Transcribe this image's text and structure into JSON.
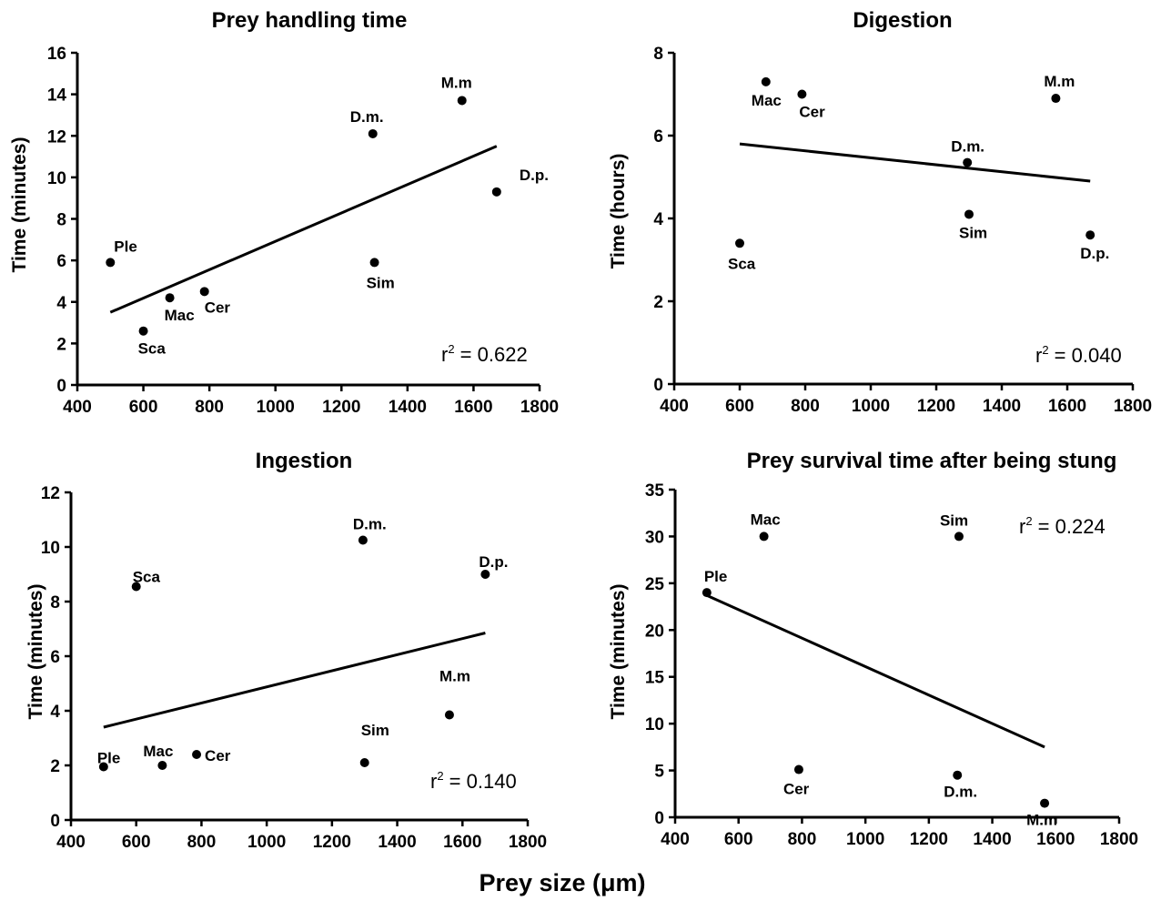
{
  "figure": {
    "common_xlabel": "Prey size (μm)"
  },
  "chart_data": [
    {
      "type": "scatter",
      "title": "Prey handling time",
      "xlabel": "",
      "ylabel": "Time (minutes)",
      "xlim": [
        400,
        1800
      ],
      "ylim": [
        0,
        16
      ],
      "xticks": [
        "400",
        "600",
        "800",
        "1000",
        "1200",
        "1400",
        "1600",
        "1800"
      ],
      "yticks": [
        "0",
        "2",
        "4",
        "6",
        "8",
        "10",
        "12",
        "14",
        "16"
      ],
      "points": [
        {
          "label": "Ple",
          "x": 500,
          "y": 5.9
        },
        {
          "label": "Sca",
          "x": 600,
          "y": 2.6
        },
        {
          "label": "Mac",
          "x": 680,
          "y": 4.2
        },
        {
          "label": "Cer",
          "x": 785,
          "y": 4.5
        },
        {
          "label": "D.m.",
          "x": 1295,
          "y": 12.1
        },
        {
          "label": "Sim",
          "x": 1300,
          "y": 5.9
        },
        {
          "label": "M.m",
          "x": 1565,
          "y": 13.7
        },
        {
          "label": "D.p.",
          "x": 1670,
          "y": 9.3
        }
      ],
      "trendline": [
        {
          "x": 500,
          "y": 3.5
        },
        {
          "x": 1670,
          "y": 11.5
        }
      ],
      "r2_prefix": "r",
      "r2_sup": "2",
      "r2_value": " = 0.622",
      "grid": false
    },
    {
      "type": "scatter",
      "title": "Digestion",
      "xlabel": "",
      "ylabel": "Time (hours)",
      "xlim": [
        400,
        1800
      ],
      "ylim": [
        0,
        8
      ],
      "xticks": [
        "400",
        "600",
        "800",
        "1000",
        "1200",
        "1400",
        "1600",
        "1800"
      ],
      "yticks": [
        "0",
        "2",
        "4",
        "6",
        "8"
      ],
      "points": [
        {
          "label": "Sca",
          "x": 600,
          "y": 3.4
        },
        {
          "label": "Mac",
          "x": 680,
          "y": 7.3
        },
        {
          "label": "Cer",
          "x": 790,
          "y": 7.0
        },
        {
          "label": "D.m.",
          "x": 1295,
          "y": 5.35
        },
        {
          "label": "Sim",
          "x": 1300,
          "y": 4.1
        },
        {
          "label": "M.m",
          "x": 1565,
          "y": 6.9
        },
        {
          "label": "D.p.",
          "x": 1670,
          "y": 3.6
        }
      ],
      "trendline": [
        {
          "x": 600,
          "y": 5.8
        },
        {
          "x": 1670,
          "y": 4.9
        }
      ],
      "r2_prefix": "r",
      "r2_sup": "2",
      "r2_value": " = 0.040",
      "grid": false
    },
    {
      "type": "scatter",
      "title": "Ingestion",
      "xlabel": "",
      "ylabel": "Time (minutes)",
      "xlim": [
        400,
        1800
      ],
      "ylim": [
        0,
        12
      ],
      "xticks": [
        "400",
        "600",
        "800",
        "1000",
        "1200",
        "1400",
        "1600",
        "1800"
      ],
      "yticks": [
        "0",
        "2",
        "4",
        "6",
        "8",
        "10",
        "12"
      ],
      "points": [
        {
          "label": "Ple",
          "x": 500,
          "y": 1.95
        },
        {
          "label": "Sca",
          "x": 600,
          "y": 8.55
        },
        {
          "label": "Mac",
          "x": 680,
          "y": 2.0
        },
        {
          "label": "Cer",
          "x": 785,
          "y": 2.4
        },
        {
          "label": "D.m.",
          "x": 1295,
          "y": 10.25
        },
        {
          "label": "Sim",
          "x": 1300,
          "y": 2.1
        },
        {
          "label": "M.m",
          "x": 1560,
          "y": 3.85
        },
        {
          "label": "D.p.",
          "x": 1670,
          "y": 9.0
        }
      ],
      "trendline": [
        {
          "x": 500,
          "y": 3.4
        },
        {
          "x": 1670,
          "y": 6.85
        }
      ],
      "r2_prefix": "r",
      "r2_sup": "2",
      "r2_value": " = 0.140",
      "grid": false
    },
    {
      "type": "scatter",
      "title": "Prey survival time after being stung",
      "xlabel": "",
      "ylabel": "Time (minutes)",
      "xlim": [
        400,
        1800
      ],
      "ylim": [
        0,
        35
      ],
      "xticks": [
        "400",
        "600",
        "800",
        "1000",
        "1200",
        "1400",
        "1600",
        "1800"
      ],
      "yticks": [
        "0",
        "5",
        "10",
        "15",
        "20",
        "25",
        "30",
        "35"
      ],
      "points": [
        {
          "label": "Ple",
          "x": 500,
          "y": 24.0
        },
        {
          "label": "Mac",
          "x": 680,
          "y": 30.0
        },
        {
          "label": "Cer",
          "x": 790,
          "y": 5.1
        },
        {
          "label": "D.m.",
          "x": 1290,
          "y": 4.5
        },
        {
          "label": "Sim",
          "x": 1295,
          "y": 30.0
        },
        {
          "label": "M.m",
          "x": 1565,
          "y": 1.5
        }
      ],
      "trendline": [
        {
          "x": 500,
          "y": 23.7
        },
        {
          "x": 1565,
          "y": 7.5
        }
      ],
      "r2_prefix": "r",
      "r2_sup": "2",
      "r2_value": " = 0.224",
      "grid": false
    }
  ]
}
